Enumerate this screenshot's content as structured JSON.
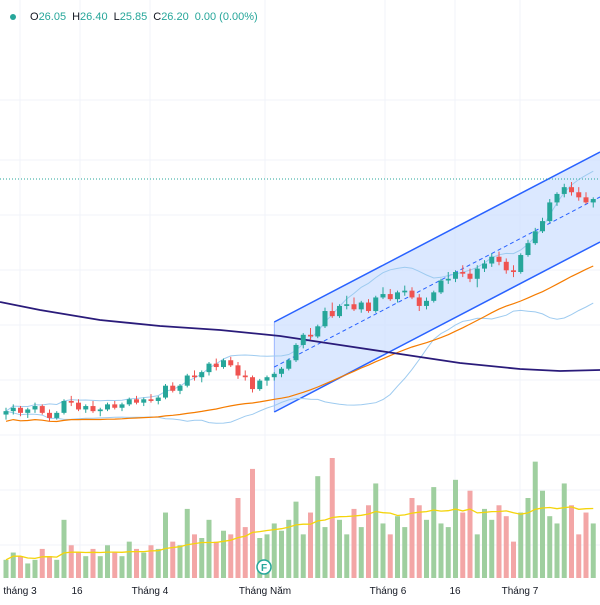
{
  "ohlc": {
    "open_label": "O",
    "open": "26.05",
    "high_label": "H",
    "high": "26.40",
    "low_label": "L",
    "low": "25.85",
    "close_label": "C",
    "close": "26.20",
    "change": "0.00 (0.00%)",
    "color": "#26a69a"
  },
  "colors": {
    "up": "#26a69a",
    "down": "#ef5350",
    "up_volume": "#9fcf9f",
    "down_volume": "#f3a6a6",
    "channel_fill": "#cfe0ff",
    "channel_line": "#2962ff",
    "ma_long": "#2a1b7a",
    "ma_orange": "#f57c00",
    "bollinger": "#9ecbf0",
    "volume_ma": "#f4d40b",
    "last_price_line": "#26a69a",
    "grid": "#f0f3fa"
  },
  "x_axis": {
    "labels": [
      "tháng 3",
      "16",
      "Tháng 4",
      "Tháng Năm",
      "Tháng 6",
      "16",
      "Tháng 7"
    ]
  },
  "event_marker": {
    "label": "F"
  },
  "chart_data": {
    "type": "candlestick",
    "grid": true,
    "candles_ohlc": [
      [
        19.5,
        19.9,
        19.2,
        19.7
      ],
      [
        19.7,
        20.1,
        19.5,
        19.9
      ],
      [
        19.9,
        20.0,
        19.4,
        19.6
      ],
      [
        19.6,
        19.9,
        19.3,
        19.8
      ],
      [
        19.8,
        20.2,
        19.6,
        20.0
      ],
      [
        20.0,
        20.1,
        19.5,
        19.6
      ],
      [
        19.6,
        19.8,
        19.1,
        19.3
      ],
      [
        19.3,
        19.7,
        19.2,
        19.6
      ],
      [
        19.6,
        20.4,
        19.5,
        20.3
      ],
      [
        20.3,
        20.6,
        20.0,
        20.2
      ],
      [
        20.2,
        20.4,
        19.7,
        19.8
      ],
      [
        19.8,
        20.1,
        19.6,
        20.0
      ],
      [
        20.0,
        20.3,
        19.6,
        19.7
      ],
      [
        19.7,
        19.9,
        19.4,
        19.8
      ],
      [
        19.8,
        20.2,
        19.7,
        20.1
      ],
      [
        20.1,
        20.3,
        19.8,
        19.9
      ],
      [
        19.9,
        20.2,
        19.7,
        20.1
      ],
      [
        20.1,
        20.5,
        20.0,
        20.4
      ],
      [
        20.4,
        20.6,
        20.1,
        20.2
      ],
      [
        20.2,
        20.5,
        20.0,
        20.4
      ],
      [
        20.4,
        20.7,
        20.2,
        20.3
      ],
      [
        20.3,
        20.6,
        20.1,
        20.5
      ],
      [
        20.5,
        21.3,
        20.4,
        21.2
      ],
      [
        21.2,
        21.4,
        20.8,
        20.9
      ],
      [
        20.9,
        21.3,
        20.7,
        21.2
      ],
      [
        21.2,
        21.9,
        21.1,
        21.8
      ],
      [
        21.8,
        22.1,
        21.5,
        21.7
      ],
      [
        21.7,
        22.1,
        21.4,
        22.0
      ],
      [
        22.0,
        22.6,
        21.8,
        22.5
      ],
      [
        22.5,
        22.8,
        22.1,
        22.3
      ],
      [
        22.3,
        22.8,
        22.2,
        22.7
      ],
      [
        22.7,
        22.9,
        22.3,
        22.4
      ],
      [
        22.4,
        22.6,
        21.6,
        21.8
      ],
      [
        21.8,
        22.1,
        21.5,
        21.7
      ],
      [
        21.7,
        21.8,
        20.8,
        21.0
      ],
      [
        21.0,
        21.6,
        20.9,
        21.5
      ],
      [
        21.5,
        21.8,
        21.2,
        21.7
      ],
      [
        21.7,
        22.0,
        21.5,
        21.9
      ],
      [
        21.9,
        22.3,
        21.7,
        22.2
      ],
      [
        22.2,
        22.8,
        22.1,
        22.7
      ],
      [
        22.7,
        23.7,
        22.6,
        23.6
      ],
      [
        23.6,
        24.3,
        23.4,
        24.2
      ],
      [
        24.2,
        24.6,
        23.9,
        24.1
      ],
      [
        24.1,
        24.8,
        24.0,
        24.7
      ],
      [
        24.7,
        25.8,
        24.6,
        25.6
      ],
      [
        25.6,
        26.1,
        25.2,
        25.3
      ],
      [
        25.3,
        26.0,
        25.2,
        25.9
      ],
      [
        25.9,
        26.5,
        25.7,
        26.0
      ],
      [
        26.0,
        26.4,
        25.6,
        25.7
      ],
      [
        25.7,
        26.2,
        25.5,
        26.1
      ],
      [
        26.1,
        26.3,
        25.5,
        25.6
      ],
      [
        25.6,
        26.5,
        25.5,
        26.4
      ],
      [
        26.4,
        27.0,
        26.3,
        26.6
      ],
      [
        26.6,
        26.9,
        26.2,
        26.3
      ],
      [
        26.3,
        26.8,
        26.1,
        26.7
      ],
      [
        26.7,
        27.1,
        26.5,
        26.8
      ],
      [
        26.8,
        27.0,
        26.3,
        26.4
      ],
      [
        26.4,
        26.6,
        25.6,
        25.9
      ],
      [
        25.9,
        26.4,
        25.7,
        26.2
      ],
      [
        26.2,
        26.8,
        26.1,
        26.7
      ],
      [
        26.7,
        27.5,
        26.6,
        27.4
      ],
      [
        27.4,
        27.9,
        27.2,
        27.5
      ],
      [
        27.5,
        28.0,
        27.3,
        27.9
      ],
      [
        27.9,
        28.3,
        27.6,
        27.8
      ],
      [
        27.8,
        28.1,
        27.3,
        27.5
      ],
      [
        27.5,
        28.3,
        27.0,
        28.1
      ],
      [
        28.1,
        28.6,
        27.9,
        28.4
      ],
      [
        28.4,
        29.0,
        28.2,
        28.8
      ],
      [
        28.8,
        29.1,
        28.3,
        28.5
      ],
      [
        28.5,
        28.7,
        27.8,
        28.0
      ],
      [
        28.0,
        28.3,
        27.6,
        27.9
      ],
      [
        27.9,
        29.0,
        27.8,
        28.9
      ],
      [
        28.9,
        29.8,
        28.8,
        29.6
      ],
      [
        29.6,
        30.5,
        29.5,
        30.3
      ],
      [
        30.3,
        31.1,
        30.2,
        30.9
      ],
      [
        30.9,
        32.2,
        30.8,
        32.0
      ],
      [
        32.0,
        32.6,
        31.8,
        32.5
      ],
      [
        32.5,
        33.1,
        32.3,
        32.9
      ],
      [
        32.9,
        33.2,
        32.4,
        32.6
      ],
      [
        32.6,
        32.9,
        32.1,
        32.3
      ],
      [
        32.3,
        32.6,
        31.9,
        32.0
      ],
      [
        32.0,
        32.3,
        31.7,
        32.2
      ]
    ],
    "volumes": [
      5,
      7,
      6,
      4,
      5,
      8,
      6,
      5,
      16,
      9,
      7,
      6,
      8,
      6,
      9,
      7,
      6,
      10,
      8,
      7,
      9,
      8,
      18,
      10,
      9,
      19,
      12,
      11,
      16,
      10,
      13,
      12,
      22,
      14,
      30,
      11,
      12,
      15,
      13,
      16,
      21,
      12,
      18,
      28,
      14,
      33,
      16,
      12,
      19,
      14,
      20,
      26,
      15,
      12,
      17,
      14,
      22,
      20,
      16,
      25,
      15,
      14,
      27,
      18,
      24,
      12,
      19,
      16,
      20,
      17,
      10,
      18,
      22,
      32,
      24,
      17,
      15,
      26,
      20,
      12,
      18,
      15
    ],
    "volume_ma_bins": 82
  }
}
